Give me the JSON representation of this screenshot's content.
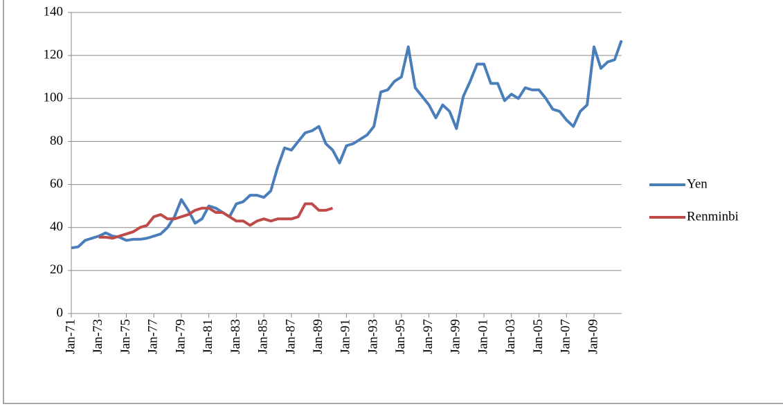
{
  "chart_data": {
    "type": "line",
    "categories": [
      "Jan-71",
      null,
      null,
      null,
      "Jan-73",
      null,
      null,
      null,
      "Jan-75",
      null,
      null,
      null,
      "Jan-77",
      null,
      null,
      null,
      "Jan-79",
      null,
      null,
      null,
      "Jan-81",
      null,
      null,
      null,
      "Jan-83",
      null,
      null,
      null,
      "Jan-85",
      null,
      null,
      null,
      "Jan-87",
      null,
      null,
      null,
      "Jan-89",
      null,
      null,
      null,
      "Jan-91",
      null,
      null,
      null,
      "Jan-93",
      null,
      null,
      null,
      "Jan-95",
      null,
      null,
      null,
      "Jan-97",
      null,
      null,
      null,
      "Jan-99",
      null,
      null,
      null,
      "Jan-01",
      null,
      null,
      null,
      "Jan-03",
      null,
      null,
      null,
      "Jan-05",
      null,
      null,
      null,
      "Jan-07",
      null,
      null,
      null,
      "Jan-09",
      null,
      null,
      null,
      null
    ],
    "series": [
      {
        "name": "Yen",
        "color": "#4a7ebb",
        "values": [
          30.5,
          31,
          34,
          35,
          36,
          37.5,
          36,
          35.5,
          34,
          34.5,
          34.5,
          35,
          36,
          37,
          40,
          45,
          53,
          48,
          42,
          44,
          50,
          49,
          47,
          45,
          51,
          52,
          55,
          55,
          54,
          57,
          68,
          77,
          76,
          80,
          84,
          85,
          87,
          79,
          76,
          70,
          78,
          79,
          81,
          83,
          87,
          103,
          104,
          108,
          110,
          124,
          105,
          101,
          97,
          91,
          97,
          94,
          86,
          101,
          108,
          116,
          116,
          107,
          107,
          99,
          102,
          100,
          105,
          104,
          104,
          100,
          95,
          94,
          90,
          87,
          94,
          97,
          124,
          114,
          117,
          118,
          127
        ]
      },
      {
        "name": "Renminbi",
        "color": "#be4b48",
        "values": [
          null,
          null,
          null,
          null,
          35.5,
          35.5,
          35,
          36,
          37,
          38,
          40,
          41,
          45,
          46,
          44,
          44,
          45,
          46,
          48,
          49,
          49,
          47,
          47,
          45,
          43,
          43,
          41,
          43,
          44,
          43,
          44,
          44,
          44,
          45,
          51,
          51,
          48,
          48,
          49,
          null,
          null,
          null,
          null,
          null,
          null,
          null,
          null,
          null,
          null,
          null,
          null,
          null,
          null,
          null,
          null,
          null,
          null,
          null,
          null,
          null,
          null,
          null,
          null,
          null,
          null,
          null,
          null,
          null,
          null,
          null,
          null,
          null,
          null,
          null,
          null,
          null,
          null,
          null,
          null,
          null,
          null
        ]
      }
    ],
    "ylim": [
      0,
      140
    ],
    "yticks": [
      0,
      20,
      40,
      60,
      80,
      100,
      120,
      140
    ],
    "grid": true,
    "legend": "right"
  }
}
